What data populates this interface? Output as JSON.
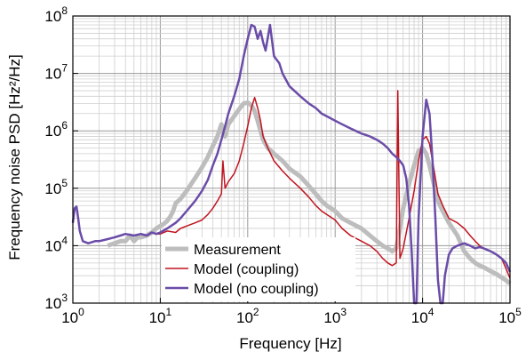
{
  "chart_data": {
    "type": "line",
    "xlabel": "Frequency [Hz]",
    "ylabel": "Frequency noise PSD [Hz²/Hz]",
    "xscale": "log",
    "yscale": "log",
    "xlim": [
      1,
      100000
    ],
    "ylim": [
      1000,
      100000000
    ],
    "grid": true,
    "legend_position": "lower-center",
    "x_ticks": [
      {
        "value": 1,
        "base": "10",
        "exp": "0"
      },
      {
        "value": 10,
        "base": "10",
        "exp": "1"
      },
      {
        "value": 100,
        "base": "10",
        "exp": "2"
      },
      {
        "value": 1000,
        "base": "10",
        "exp": "3"
      },
      {
        "value": 10000,
        "base": "10",
        "exp": "4"
      },
      {
        "value": 100000,
        "base": "10",
        "exp": "5"
      }
    ],
    "y_ticks": [
      {
        "value": 1000,
        "base": "10",
        "exp": "3"
      },
      {
        "value": 10000,
        "base": "10",
        "exp": "4"
      },
      {
        "value": 100000,
        "base": "10",
        "exp": "5"
      },
      {
        "value": 1000000,
        "base": "10",
        "exp": "6"
      },
      {
        "value": 10000000,
        "base": "10",
        "exp": "7"
      },
      {
        "value": 100000000,
        "base": "10",
        "exp": "8"
      }
    ],
    "series": [
      {
        "name": "Measurement",
        "color": "#bdbdbd",
        "width": 5,
        "x": [
          2.5,
          3,
          3.5,
          4,
          4.5,
          5,
          5.5,
          6,
          7,
          8,
          9,
          10,
          11,
          12,
          13,
          14,
          15,
          17,
          20,
          25,
          30,
          35,
          40,
          45,
          50,
          55,
          60,
          70,
          80,
          90,
          100,
          110,
          120,
          130,
          140,
          150,
          170,
          200,
          250,
          300,
          400,
          500,
          600,
          700,
          800,
          1000,
          1200,
          1500,
          2000,
          2500,
          3000,
          3500,
          4000,
          4500,
          5000,
          5500,
          6000,
          7000,
          8000,
          9000,
          10000,
          11000,
          12000,
          13000,
          14000,
          15000,
          17000,
          20000,
          25000,
          30000,
          35000,
          40000,
          45000,
          50000,
          60000,
          70000,
          80000,
          90000,
          100000
        ],
        "y": [
          10000,
          11000,
          12000,
          12000,
          15000,
          12000,
          14000,
          14000,
          15000,
          17000,
          20000,
          22000,
          24000,
          27000,
          32000,
          40000,
          55000,
          65000,
          90000,
          150000,
          230000,
          350000,
          550000,
          800000,
          1300000,
          800000,
          1300000,
          1800000,
          2400000,
          3000000,
          3100000,
          2800000,
          2200000,
          1500000,
          1000000,
          700000,
          500000,
          400000,
          300000,
          220000,
          160000,
          110000,
          80000,
          60000,
          50000,
          40000,
          30000,
          25000,
          20000,
          15000,
          12000,
          10000,
          9000,
          8000,
          9000,
          20000,
          45000,
          120000,
          250000,
          450000,
          500000,
          400000,
          250000,
          150000,
          90000,
          60000,
          40000,
          25000,
          15000,
          8000,
          6000,
          5000,
          4500,
          4200,
          3600,
          3200,
          2800,
          2500,
          2200
        ]
      },
      {
        "name": "Model (coupling)",
        "color": "#c0141f",
        "width": 1.5,
        "x": [
          1,
          1.05,
          1.1,
          1.15,
          1.2,
          1.3,
          1.5,
          1.8,
          2,
          2.5,
          3,
          3.5,
          4,
          5,
          6,
          7,
          8,
          9,
          10,
          12,
          15,
          17,
          20,
          25,
          30,
          35,
          40,
          45,
          50,
          52,
          55,
          60,
          70,
          80,
          90,
          100,
          110,
          120,
          130,
          140,
          150,
          170,
          200,
          250,
          300,
          400,
          500,
          600,
          700,
          800,
          1000,
          1200,
          1500,
          2000,
          2500,
          3000,
          3500,
          4000,
          4500,
          5000,
          5200,
          5500,
          6000,
          7000,
          8000,
          9000,
          10000,
          11000,
          12000,
          13000,
          14000,
          15000,
          17000,
          20000,
          25000,
          30000,
          35000,
          40000,
          45000,
          50000,
          60000,
          70000,
          80000,
          90000,
          100000
        ],
        "y": [
          25000,
          45000,
          48000,
          30000,
          18000,
          12000,
          11000,
          12000,
          12000,
          13000,
          14000,
          15000,
          16000,
          15000,
          16000,
          15000,
          17000,
          16000,
          16000,
          18000,
          17000,
          20000,
          22000,
          25000,
          28000,
          35000,
          45000,
          60000,
          80000,
          300000,
          100000,
          130000,
          180000,
          300000,
          600000,
          1200000,
          2500000,
          3800000,
          2500000,
          1500000,
          800000,
          500000,
          300000,
          200000,
          150000,
          100000,
          70000,
          50000,
          40000,
          35000,
          28000,
          20000,
          15000,
          12000,
          10000,
          8000,
          6000,
          5000,
          4500,
          5000,
          5000000,
          6000,
          9000,
          30000,
          90000,
          300000,
          700000,
          800000,
          600000,
          300000,
          150000,
          80000,
          50000,
          30000,
          25000,
          20000,
          15000,
          12000,
          10000,
          9000,
          8000,
          7000,
          6000,
          4000,
          2700
        ]
      },
      {
        "name": "Model (no coupling)",
        "color": "#6a4ca8",
        "width": 2.5,
        "x": [
          1,
          1.05,
          1.1,
          1.15,
          1.2,
          1.3,
          1.5,
          1.8,
          2,
          2.5,
          3,
          3.5,
          4,
          5,
          6,
          7,
          8,
          9,
          10,
          12,
          15,
          17,
          20,
          25,
          30,
          35,
          40,
          45,
          50,
          55,
          60,
          70,
          80,
          90,
          100,
          110,
          120,
          130,
          140,
          150,
          160,
          180,
          200,
          230,
          250,
          300,
          400,
          500,
          600,
          700,
          800,
          1000,
          1200,
          1500,
          2000,
          2500,
          3000,
          3500,
          4000,
          4500,
          5000,
          5500,
          6000,
          6500,
          7000,
          7500,
          8000,
          8500,
          9000,
          10000,
          11000,
          12000,
          13000,
          14000,
          15000,
          16000,
          17000,
          18000,
          20000,
          22000,
          25000,
          30000,
          35000,
          40000,
          45000,
          50000,
          60000,
          70000,
          80000,
          90000,
          100000
        ],
        "y": [
          25000,
          45000,
          48000,
          30000,
          18000,
          12000,
          11000,
          12000,
          12000,
          13000,
          14000,
          15000,
          16000,
          15000,
          16000,
          15000,
          17000,
          16000,
          17000,
          20000,
          25000,
          30000,
          40000,
          60000,
          90000,
          140000,
          250000,
          400000,
          700000,
          1200000,
          2000000,
          4000000,
          8000000,
          20000000,
          40000000,
          70000000,
          65000000,
          40000000,
          55000000,
          35000000,
          25000000,
          70000000,
          20000000,
          15000000,
          10000000,
          6000000,
          4000000,
          3000000,
          2500000,
          2000000,
          1800000,
          1500000,
          1300000,
          1100000,
          900000,
          800000,
          700000,
          600000,
          500000,
          400000,
          350000,
          300000,
          250000,
          150000,
          50000,
          8000,
          1000,
          1000,
          30000,
          800000,
          3500000,
          2000000,
          300000,
          30000,
          2500,
          1000,
          1000,
          3000,
          7000,
          9000,
          10000,
          11000,
          10000,
          9000,
          9500,
          9000,
          8000,
          7000,
          6000,
          5000,
          3500
        ]
      }
    ]
  }
}
